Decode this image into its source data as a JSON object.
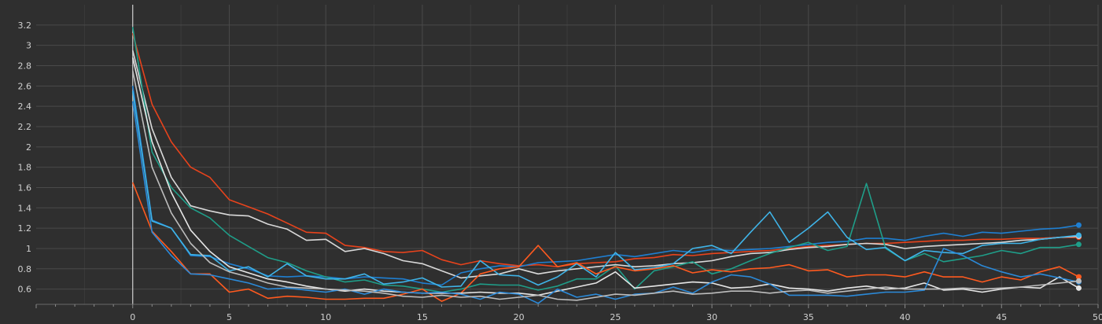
{
  "chart_data": {
    "type": "line",
    "title": "",
    "xlabel": "",
    "ylabel": "",
    "xlim": [
      -5,
      50
    ],
    "ylim": [
      0.45,
      3.4
    ],
    "grid": true,
    "x_ticks": [
      0,
      5,
      10,
      15,
      20,
      25,
      30,
      35,
      40,
      45,
      50
    ],
    "y_ticks": [
      0.6,
      0.8,
      1,
      1.2,
      1.4,
      1.6,
      1.8,
      2,
      2.2,
      2.4,
      2.6,
      2.8,
      3,
      3.2
    ],
    "x": [
      0,
      1,
      2,
      3,
      4,
      5,
      6,
      7,
      8,
      9,
      10,
      11,
      12,
      13,
      14,
      15,
      16,
      17,
      18,
      19,
      20,
      21,
      22,
      23,
      24,
      25,
      26,
      27,
      28,
      29,
      30,
      31,
      32,
      33,
      34,
      35,
      36,
      37,
      38,
      39,
      40,
      41,
      42,
      43,
      44,
      45,
      46,
      47,
      48,
      49
    ],
    "series": [
      {
        "color": "#e8431c",
        "values": [
          3.12,
          2.42,
          2.05,
          1.8,
          1.7,
          1.48,
          1.41,
          1.34,
          1.25,
          1.16,
          1.15,
          1.03,
          1.01,
          0.97,
          0.96,
          0.98,
          0.89,
          0.84,
          0.88,
          0.85,
          0.83,
          0.84,
          0.82,
          0.85,
          0.86,
          0.87,
          0.9,
          0.91,
          0.94,
          0.93,
          0.95,
          0.96,
          0.97,
          0.98,
          1.0,
          1.02,
          1.03,
          1.04,
          1.05,
          1.05,
          1.06,
          1.07,
          1.08,
          1.08,
          1.09,
          1.09,
          1.1,
          1.1,
          1.11,
          1.11
        ]
      },
      {
        "color": "#d9d9d9",
        "values": [
          2.95,
          2.18,
          1.7,
          1.42,
          1.37,
          1.33,
          1.32,
          1.24,
          1.19,
          1.08,
          1.09,
          0.97,
          1.0,
          0.95,
          0.88,
          0.85,
          0.78,
          0.71,
          0.73,
          0.75,
          0.8,
          0.75,
          0.78,
          0.8,
          0.82,
          0.84,
          0.82,
          0.83,
          0.85,
          0.86,
          0.88,
          0.92,
          0.95,
          0.96,
          0.99,
          1.01,
          1.02,
          1.04,
          1.05,
          1.04,
          1.0,
          1.02,
          1.03,
          1.04,
          1.05,
          1.06,
          1.08,
          1.09,
          1.11,
          1.12
        ]
      },
      {
        "color": "#1f7fd1",
        "values": [
          2.6,
          1.28,
          1.2,
          0.93,
          0.92,
          0.85,
          0.8,
          0.73,
          0.72,
          0.73,
          0.72,
          0.7,
          0.72,
          0.71,
          0.7,
          0.66,
          0.64,
          0.76,
          0.8,
          0.83,
          0.82,
          0.86,
          0.87,
          0.88,
          0.91,
          0.94,
          0.92,
          0.95,
          0.98,
          0.96,
          0.99,
          0.98,
          0.99,
          1.0,
          1.02,
          1.04,
          1.06,
          1.07,
          1.1,
          1.1,
          1.08,
          1.12,
          1.15,
          1.12,
          1.16,
          1.15,
          1.17,
          1.19,
          1.2,
          1.23
        ]
      },
      {
        "color": "#1f9e89",
        "values": [
          3.18,
          1.95,
          1.6,
          1.4,
          1.3,
          1.13,
          1.02,
          0.91,
          0.86,
          0.78,
          0.72,
          0.67,
          0.69,
          0.64,
          0.63,
          0.6,
          0.57,
          0.6,
          0.65,
          0.64,
          0.64,
          0.59,
          0.63,
          0.7,
          0.7,
          0.83,
          0.6,
          0.78,
          0.82,
          0.87,
          0.75,
          0.8,
          0.88,
          0.95,
          1.01,
          1.06,
          0.98,
          1.02,
          1.64,
          1.0,
          0.88,
          0.95,
          0.87,
          0.9,
          0.93,
          0.98,
          0.95,
          1.01,
          1.01,
          1.04
        ]
      },
      {
        "color": "#3fb4e8",
        "values": [
          2.55,
          1.27,
          1.2,
          0.94,
          0.93,
          0.78,
          0.82,
          0.72,
          0.85,
          0.73,
          0.7,
          0.7,
          0.75,
          0.65,
          0.67,
          0.71,
          0.62,
          0.63,
          0.88,
          0.74,
          0.73,
          0.64,
          0.72,
          0.85,
          0.72,
          0.96,
          0.79,
          0.81,
          0.85,
          1.0,
          1.03,
          0.95,
          1.16,
          1.36,
          1.06,
          1.2,
          1.36,
          1.11,
          0.99,
          1.01,
          0.88,
          0.98,
          0.96,
          0.95,
          1.03,
          1.05,
          1.05,
          1.09,
          1.11,
          1.13
        ]
      },
      {
        "color": "#ff5a1f",
        "values": [
          1.65,
          1.17,
          0.97,
          0.75,
          0.75,
          0.57,
          0.6,
          0.51,
          0.53,
          0.52,
          0.5,
          0.5,
          0.51,
          0.51,
          0.55,
          0.6,
          0.48,
          0.56,
          0.75,
          0.8,
          0.82,
          1.03,
          0.82,
          0.86,
          0.75,
          0.82,
          0.78,
          0.8,
          0.83,
          0.76,
          0.79,
          0.77,
          0.8,
          0.81,
          0.84,
          0.78,
          0.79,
          0.72,
          0.74,
          0.74,
          0.72,
          0.77,
          0.72,
          0.72,
          0.67,
          0.72,
          0.69,
          0.77,
          0.82,
          0.72
        ]
      },
      {
        "color": "#e6e6e6",
        "values": [
          2.88,
          2.05,
          1.55,
          1.18,
          0.97,
          0.82,
          0.76,
          0.7,
          0.67,
          0.63,
          0.6,
          0.58,
          0.6,
          0.58,
          0.57,
          0.56,
          0.56,
          0.56,
          0.57,
          0.56,
          0.56,
          0.54,
          0.58,
          0.62,
          0.66,
          0.77,
          0.61,
          0.63,
          0.65,
          0.67,
          0.66,
          0.61,
          0.62,
          0.65,
          0.61,
          0.6,
          0.58,
          0.61,
          0.63,
          0.6,
          0.61,
          0.66,
          0.59,
          0.6,
          0.57,
          0.6,
          0.62,
          0.61,
          0.72,
          0.61
        ]
      },
      {
        "color": "#2b8ad9",
        "values": [
          2.45,
          1.16,
          0.93,
          0.75,
          0.74,
          0.7,
          0.66,
          0.6,
          0.61,
          0.59,
          0.57,
          0.6,
          0.55,
          0.6,
          0.57,
          0.56,
          0.57,
          0.55,
          0.5,
          0.57,
          0.55,
          0.46,
          0.6,
          0.52,
          0.55,
          0.5,
          0.55,
          0.56,
          0.62,
          0.56,
          0.67,
          0.74,
          0.72,
          0.65,
          0.54,
          0.54,
          0.54,
          0.53,
          0.55,
          0.57,
          0.57,
          0.59,
          1.0,
          0.93,
          0.83,
          0.77,
          0.72,
          0.75,
          0.71,
          0.67
        ]
      },
      {
        "color": "#bdbdbd",
        "values": [
          2.75,
          1.8,
          1.35,
          1.05,
          0.86,
          0.77,
          0.72,
          0.66,
          0.62,
          0.61,
          0.6,
          0.59,
          0.58,
          0.56,
          0.53,
          0.52,
          0.54,
          0.52,
          0.53,
          0.5,
          0.52,
          0.54,
          0.5,
          0.49,
          0.52,
          0.55,
          0.54,
          0.56,
          0.58,
          0.55,
          0.56,
          0.58,
          0.58,
          0.56,
          0.58,
          0.59,
          0.56,
          0.58,
          0.6,
          0.62,
          0.6,
          0.6,
          0.6,
          0.61,
          0.6,
          0.61,
          0.62,
          0.64,
          0.66,
          0.68
        ]
      }
    ]
  }
}
